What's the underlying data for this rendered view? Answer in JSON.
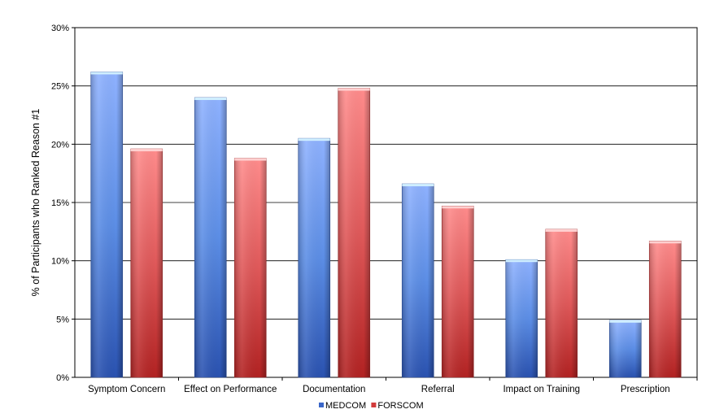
{
  "chart_data": {
    "type": "bar",
    "ylabel": "% of Participants who Ranked Reason #1",
    "xlabel": "",
    "ylim": [
      0,
      30
    ],
    "yticks": [
      "0%",
      "5%",
      "10%",
      "15%",
      "20%",
      "25%",
      "30%"
    ],
    "categories": [
      "Symptom Concern",
      "Effect on Performance",
      "Documentation",
      "Referral",
      "Impact on Training",
      "Prescription"
    ],
    "series": [
      {
        "name": "MEDCOM",
        "values": [
          26.2,
          24.0,
          20.5,
          16.6,
          10.1,
          4.9
        ],
        "color": "#5b8de8"
      },
      {
        "name": "FORSCOM",
        "values": [
          19.6,
          18.8,
          24.8,
          14.7,
          12.7,
          11.7
        ],
        "color": "#e05a5a"
      }
    ],
    "grid": true,
    "legend_position": "bottom"
  }
}
